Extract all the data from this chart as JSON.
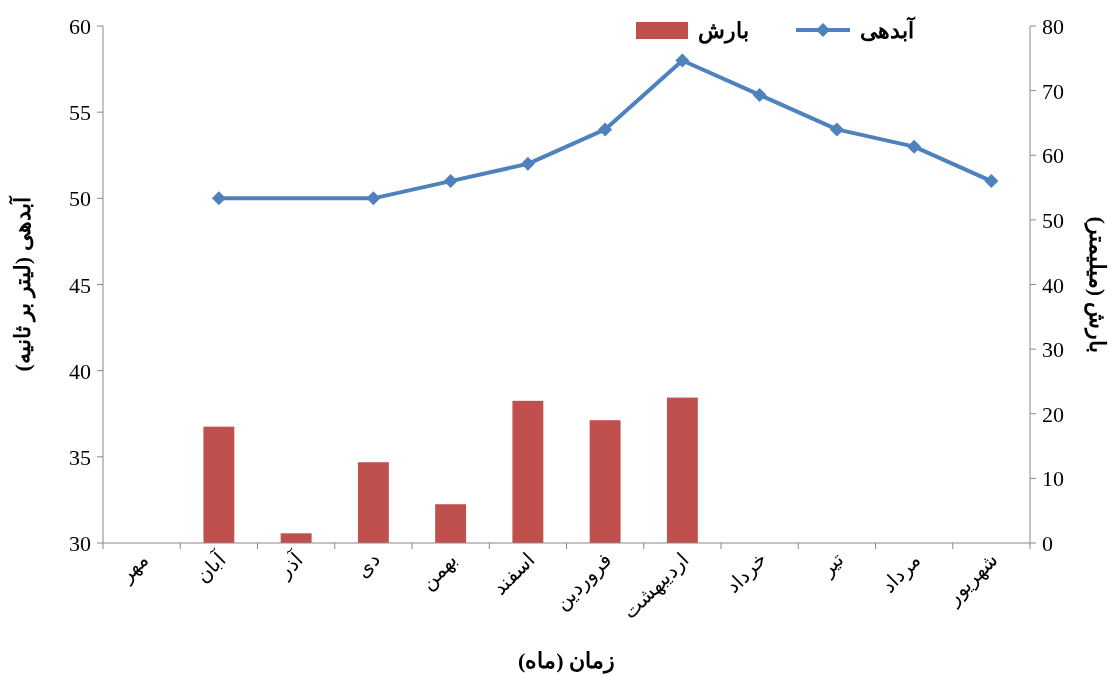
{
  "chart_data": {
    "type": "bar",
    "xlabel": "زمان (ماه)",
    "ylabel": "آبدهی (لیتر بر ثانیه)",
    "y2label": "بارش (میلیمتر)",
    "categories": [
      "مهر",
      "آبان",
      "آذر",
      "دی",
      "بهمن",
      "اسفند",
      "فروردین",
      "اردیبهشت",
      "خرداد",
      "تیر",
      "مرداد",
      "شهریور"
    ],
    "series": [
      {
        "name": "بارش",
        "axis": "y2",
        "color": "#c0504d",
        "values": [
          null,
          18,
          1.5,
          12.5,
          6,
          22,
          19,
          22.5,
          null,
          null,
          null,
          null
        ]
      },
      {
        "name": "آبدهی",
        "type": "line",
        "axis": "y",
        "color": "#4f81bd",
        "values": [
          null,
          50,
          null,
          50,
          51,
          52,
          54,
          58,
          56,
          54,
          53,
          51
        ]
      }
    ],
    "ylim": [
      30,
      60
    ],
    "yticks": [
      30,
      35,
      40,
      45,
      50,
      55,
      60
    ],
    "y2lim": [
      0,
      80
    ],
    "y2ticks": [
      0,
      10,
      20,
      30,
      40,
      50,
      60,
      70,
      80
    ],
    "legend": "top",
    "marker": "diamond",
    "line_style": "solid",
    "grid": false
  }
}
